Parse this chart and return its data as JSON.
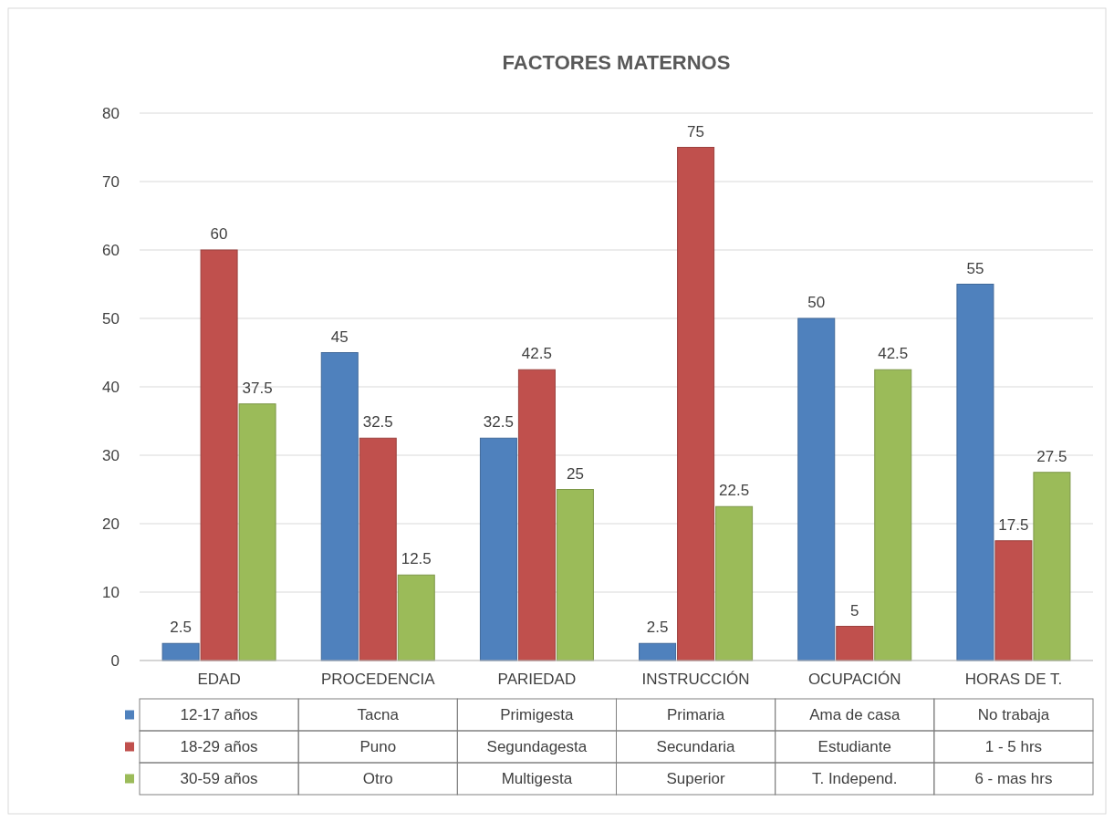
{
  "chart_data": {
    "type": "bar",
    "title": "FACTORES MATERNOS",
    "categories": [
      "EDAD",
      "PROCEDENCIA",
      "PARIEDAD",
      "INSTRUCCIÓN",
      "OCUPACIÓN",
      "HORAS DE T."
    ],
    "series": [
      {
        "color": "#4f81bd",
        "values": [
          2.5,
          45,
          32.5,
          2.5,
          50,
          55
        ]
      },
      {
        "color": "#c0504d",
        "values": [
          60,
          32.5,
          42.5,
          75,
          5,
          17.5
        ]
      },
      {
        "color": "#9bbb59",
        "values": [
          37.5,
          12.5,
          25,
          22.5,
          42.5,
          27.5
        ]
      }
    ],
    "ylim": [
      0,
      80
    ],
    "yticks": [
      0,
      10,
      20,
      30,
      40,
      50,
      60,
      70,
      80
    ],
    "grid": "y",
    "data_labels": true,
    "annotations": [
      "12-17 años",
      "Tacna",
      "Primigesta",
      "Primaria",
      "Ama de casa",
      "No trabaja",
      "18-29 años",
      "Puno",
      "Segundagesta",
      "Secundaria",
      "Estudiante",
      "1 - 5 hrs",
      "30-59 años",
      "Otro",
      "Multigesta",
      "Superior",
      "T. Independ.",
      "6 - mas hrs"
    ]
  }
}
